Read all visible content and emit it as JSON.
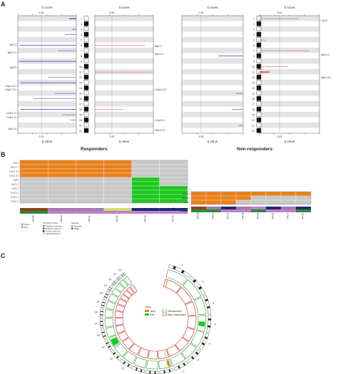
{
  "panels": {
    "a": "A",
    "b": "B",
    "c": "C"
  },
  "axis": {
    "gscore": "G score",
    "qvalue": "q value",
    "tick_025": "0.25"
  },
  "groups": {
    "responders": "Responders",
    "nonresponders": "Non-responders"
  },
  "chromosomes": [
    "1",
    "2",
    "3",
    "4",
    "5",
    "6",
    "7",
    "8",
    "9",
    "10",
    "11",
    "12",
    "13",
    "14",
    "15",
    "16",
    "17",
    "18",
    "19",
    "20",
    "21",
    "22"
  ],
  "cnv_labels_left": [
    "8p11",
    "8p11.1",
    "4q27",
    "13q11.21",
    "13q11.22",
    "11q11.2",
    "17q11.2",
    "1q21.3"
  ],
  "cnv_labels_mid": [
    "8p11",
    "8p11.1",
    "10q11.21",
    "15q11.1",
    "9q11.21"
  ],
  "cnv_labels_right": [
    "1q13",
    "8p11.1",
    "8q11.23"
  ],
  "heatmap_rows_left": [
    "8p11",
    "10p11.1",
    "13q11.21",
    "13q11.22",
    "4q27",
    "8p11.1",
    "1q21.3",
    "11q11.2",
    "15q11.2",
    "17q11.2"
  ],
  "heatmap_rows_right": [
    "8p11.1",
    "18p11.1",
    "1q13"
  ],
  "heatmap_cols_left": [
    "HP084",
    "HP010",
    "HP032",
    "HP018",
    "HP038",
    "HP024"
  ],
  "heatmap_cols_right": [
    "HP058",
    "HP003",
    "HP033",
    "HP034",
    "HP040",
    "HP011",
    "HP027",
    "HP062"
  ],
  "legend_b": {
    "amp": "Amp",
    "del": "Del",
    "primary_tumor": "Primary tumor",
    "tumor_types": [
      "Ovarian Cancer",
      "Gastric Cancer",
      "Colon Cancer",
      "Mesothelioma"
    ],
    "gender": "Gender",
    "genders": [
      "Female",
      "Male"
    ]
  },
  "row_labels_b": {
    "primary_tumor": "Primary tumor",
    "gender": "Gender"
  },
  "legend_c": {
    "title": "CNVs",
    "amp": "Amp",
    "del": "Del",
    "responders": "Responders",
    "nonresponders": "Non-responders"
  },
  "colors": {
    "amp": "#e8801a",
    "del": "#1ec81e",
    "amp_line": "#d04a4a",
    "del_line": "#3a3ac8",
    "grey": "#c8c8c8",
    "band": "#e4e4e4",
    "ring_resp": "#2a9a2a",
    "ring_nonresp": "#d02020"
  }
}
